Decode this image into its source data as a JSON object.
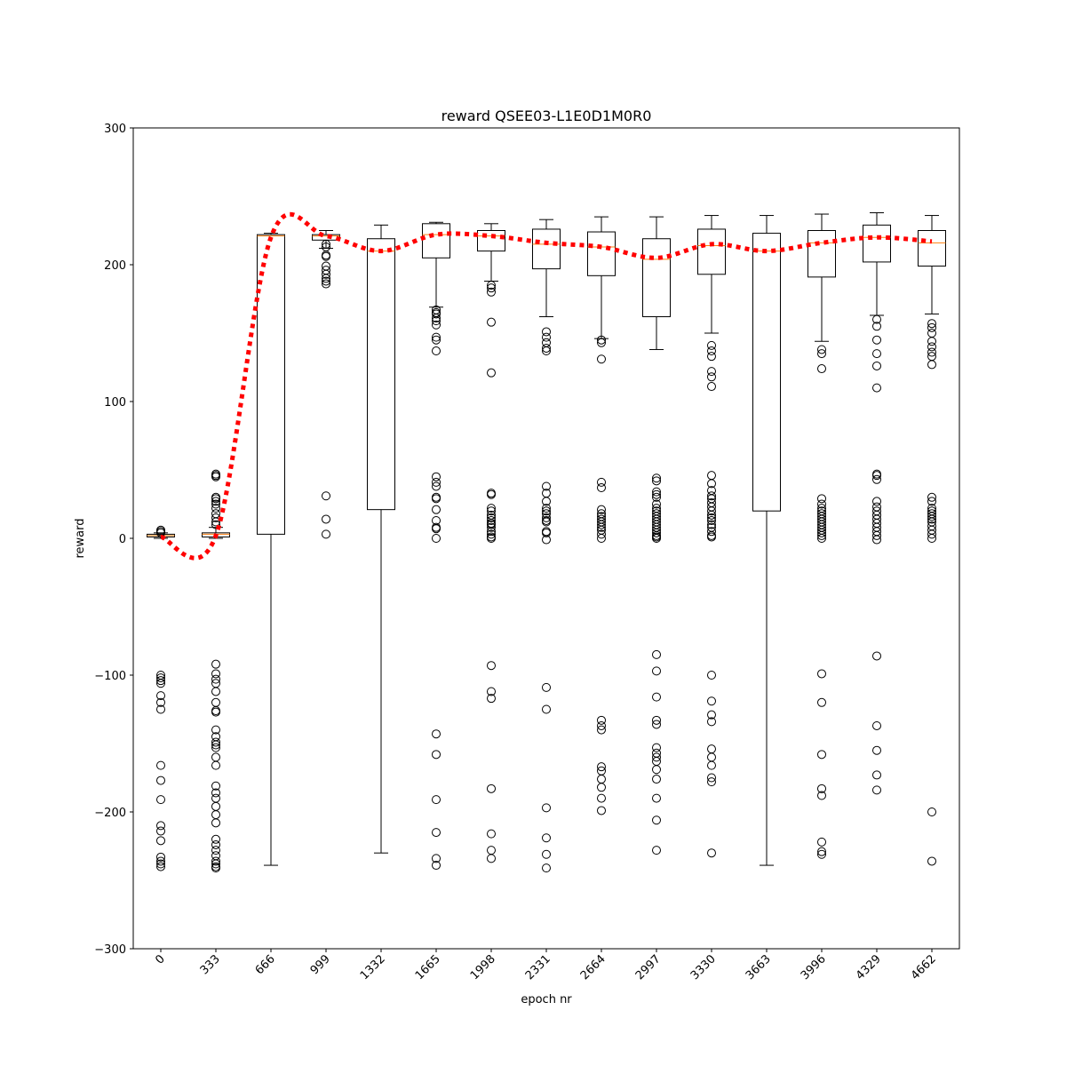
{
  "chart_data": {
    "type": "box",
    "title": "reward QSEE03-L1E0D1M0R0",
    "xlabel": "epoch nr",
    "ylabel": "reward",
    "ylim": [
      -300,
      300
    ],
    "yticks": [
      -300,
      -200,
      -100,
      0,
      100,
      200,
      300
    ],
    "grid": false,
    "colors": {
      "box": "#000000",
      "median": "#ff7f0e",
      "mean_line": "#ff0000"
    },
    "categories": [
      "0",
      "333",
      "666",
      "999",
      "1332",
      "1665",
      "1998",
      "2331",
      "2664",
      "2997",
      "3330",
      "3663",
      "3996",
      "4329",
      "4662"
    ],
    "boxes": [
      {
        "whislo": 0,
        "q1": 1,
        "med": 2,
        "q3": 3,
        "whishi": 4,
        "mean": 1,
        "fliers": [
          4,
          5,
          6,
          -100,
          -102,
          -104,
          -106,
          -115,
          -120,
          -125,
          -166,
          -177,
          -191,
          -210,
          -214,
          -221,
          -233,
          -236,
          -238,
          -240
        ]
      },
      {
        "whislo": 0,
        "q1": 1,
        "med": 3,
        "q3": 4,
        "whishi": 8,
        "mean": 2,
        "fliers": [
          10,
          12,
          15,
          18,
          22,
          25,
          27,
          29,
          30,
          45,
          46,
          47,
          -92,
          -99,
          -103,
          -106,
          -112,
          -120,
          -126,
          -127,
          -140,
          -145,
          -149,
          -151,
          -153,
          -160,
          -166,
          -181,
          -186,
          -190,
          -196,
          -202,
          -208,
          -220,
          -224,
          -228,
          -232,
          -236,
          -238,
          -240,
          -241
        ]
      },
      {
        "whislo": -239,
        "q1": 3,
        "med": 221,
        "q3": 222,
        "whishi": 223,
        "mean": 220,
        "fliers": []
      },
      {
        "whislo": 212,
        "q1": 218,
        "med": 221,
        "q3": 222,
        "whishi": 225,
        "mean": 221,
        "fliers": [
          3,
          14,
          31,
          186,
          188,
          190,
          193,
          196,
          199,
          206,
          207,
          213,
          215
        ]
      },
      {
        "whislo": -230,
        "q1": 21,
        "med": 210,
        "q3": 219,
        "whishi": 229,
        "mean": 210,
        "fliers": []
      },
      {
        "whislo": 169,
        "q1": 205,
        "med": 222,
        "q3": 230,
        "whishi": 231,
        "mean": 222,
        "fliers": [
          0,
          7,
          8,
          13,
          21,
          29,
          30,
          38,
          41,
          45,
          137,
          145,
          147,
          156,
          159,
          161,
          164,
          165,
          167,
          -143,
          -158,
          -191,
          -215,
          -234,
          -239
        ]
      },
      {
        "whislo": 188,
        "q1": 210,
        "med": 221,
        "q3": 225,
        "whishi": 230,
        "mean": 221,
        "fliers": [
          0,
          1,
          3,
          5,
          8,
          10,
          11,
          13,
          15,
          17,
          20,
          22,
          32,
          33,
          121,
          158,
          180,
          183,
          185,
          -93,
          -112,
          -117,
          -183,
          -216,
          -228,
          -234
        ]
      },
      {
        "whislo": 162,
        "q1": 197,
        "med": 215,
        "q3": 226,
        "whishi": 233,
        "mean": 216,
        "fliers": [
          -1,
          4,
          5,
          12,
          13,
          15,
          18,
          20,
          22,
          27,
          33,
          38,
          137,
          139,
          143,
          147,
          151,
          -109,
          -125,
          -197,
          -219,
          -231,
          -241
        ]
      },
      {
        "whislo": 146,
        "q1": 192,
        "med": 213,
        "q3": 224,
        "whishi": 235,
        "mean": 213,
        "fliers": [
          0,
          3,
          6,
          8,
          10,
          12,
          14,
          16,
          18,
          21,
          37,
          41,
          131,
          143,
          145,
          -133,
          -137,
          -140,
          -167,
          -170,
          -176,
          -182,
          -190,
          -199
        ]
      },
      {
        "whislo": 138,
        "q1": 162,
        "med": 204,
        "q3": 219,
        "whishi": 235,
        "mean": 205,
        "fliers": [
          0,
          1,
          2,
          4,
          6,
          8,
          10,
          12,
          14,
          16,
          18,
          20,
          22,
          25,
          30,
          32,
          34,
          42,
          44,
          -85,
          -97,
          -116,
          -133,
          -136,
          -153,
          -157,
          -160,
          -163,
          -169,
          -176,
          -190,
          -206,
          -228
        ]
      },
      {
        "whislo": 150,
        "q1": 193,
        "med": 214,
        "q3": 226,
        "whishi": 236,
        "mean": 215,
        "fliers": [
          1,
          2,
          5,
          8,
          10,
          13,
          15,
          17,
          20,
          23,
          26,
          29,
          31,
          35,
          40,
          46,
          111,
          118,
          122,
          133,
          137,
          141,
          -100,
          -119,
          -129,
          -134,
          -154,
          -160,
          -166,
          -175,
          -178,
          -230
        ]
      },
      {
        "whislo": -239,
        "q1": 20,
        "med": 210,
        "q3": 223,
        "whishi": 236,
        "mean": 210,
        "fliers": []
      },
      {
        "whislo": 144,
        "q1": 191,
        "med": 216,
        "q3": 225,
        "whishi": 237,
        "mean": 216,
        "fliers": [
          0,
          2,
          4,
          6,
          8,
          10,
          12,
          14,
          16,
          18,
          20,
          22,
          25,
          29,
          124,
          135,
          138,
          -99,
          -120,
          -158,
          -183,
          -188,
          -222,
          -229,
          -231
        ]
      },
      {
        "whislo": 163,
        "q1": 202,
        "med": 220,
        "q3": 229,
        "whishi": 238,
        "mean": 220,
        "fliers": [
          -1,
          2,
          5,
          8,
          11,
          14,
          17,
          20,
          23,
          27,
          43,
          46,
          47,
          110,
          126,
          135,
          145,
          155,
          160,
          -86,
          -137,
          -155,
          -173,
          -184
        ]
      },
      {
        "whislo": 164,
        "q1": 199,
        "med": 216,
        "q3": 225,
        "whishi": 236,
        "mean": 217,
        "fliers": [
          0,
          3,
          6,
          9,
          12,
          14,
          16,
          18,
          20,
          22,
          27,
          30,
          127,
          133,
          136,
          140,
          144,
          150,
          154,
          157,
          -200,
          -236
        ]
      }
    ]
  }
}
